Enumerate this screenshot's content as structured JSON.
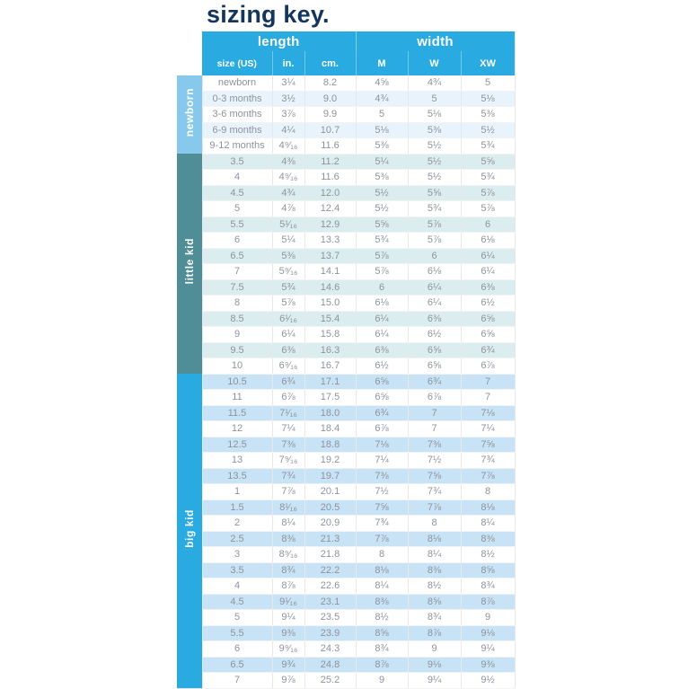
{
  "title": "sizing key.",
  "colors": {
    "title": "#14365c",
    "header": "#29abe2",
    "cell_text": "#8d939c",
    "grid_line": "#e6e9ec"
  },
  "table": {
    "header_groups": [
      {
        "label": "length",
        "colspan": 3
      },
      {
        "label": "width",
        "colspan": 3
      }
    ],
    "columns": [
      "size (US)",
      "in.",
      "cm.",
      "M",
      "W",
      "XW"
    ],
    "sections": [
      {
        "label": "newborn",
        "band_color": "#87c9ed",
        "stripe_color": "#e9f3fb",
        "rows": [
          [
            "newborn",
            "3¼",
            "8.2",
            "4⅝",
            "4¾",
            "5"
          ],
          [
            "0-3 months",
            "3½",
            "9.0",
            "4¾",
            "5",
            "5⅛"
          ],
          [
            "3-6 months",
            "3⅞",
            "9.9",
            "5",
            "5⅛",
            "5⅜"
          ],
          [
            "6-9 months",
            "4¼",
            "10.7",
            "5⅛",
            "5⅜",
            "5½"
          ],
          [
            "9-12 months",
            "4⁹⁄₁₆",
            "11.6",
            "5⅜",
            "5½",
            "5¾"
          ]
        ]
      },
      {
        "label": "little kid",
        "band_color": "#4f8d97",
        "stripe_color": "#dcedef",
        "rows": [
          [
            "3.5",
            "4⅜",
            "11.2",
            "5¼",
            "5½",
            "5⅝"
          ],
          [
            "4",
            "4⁹⁄₁₆",
            "11.6",
            "5⅜",
            "5½",
            "5¾"
          ],
          [
            "4.5",
            "4¾",
            "12.0",
            "5½",
            "5⅝",
            "5⅞"
          ],
          [
            "5",
            "4⅞",
            "12.4",
            "5½",
            "5¾",
            "5⅞"
          ],
          [
            "5.5",
            "5¹⁄₁₆",
            "12.9",
            "5⅝",
            "5⅞",
            "6"
          ],
          [
            "6",
            "5¼",
            "13.3",
            "5¾",
            "5⅞",
            "6⅛"
          ],
          [
            "6.5",
            "5⅜",
            "13.7",
            "5⅞",
            "6",
            "6¼"
          ],
          [
            "7",
            "5⁹⁄₁₆",
            "14.1",
            "5⅞",
            "6⅛",
            "6¼"
          ],
          [
            "7.5",
            "5¾",
            "14.6",
            "6",
            "6¼",
            "6⅜"
          ],
          [
            "8",
            "5⅞",
            "15.0",
            "6⅛",
            "6¼",
            "6½"
          ],
          [
            "8.5",
            "6¹⁄₁₆",
            "15.4",
            "6¼",
            "6⅜",
            "6⅝"
          ],
          [
            "9",
            "6¼",
            "15.8",
            "6¼",
            "6½",
            "6⅝"
          ],
          [
            "9.5",
            "6⅜",
            "16.3",
            "6⅜",
            "6⅝",
            "6¾"
          ],
          [
            "10",
            "6⁹⁄₁₆",
            "16.7",
            "6½",
            "6⅝",
            "6⅞"
          ]
        ]
      },
      {
        "label": "big kid",
        "band_color": "#29abe2",
        "stripe_color": "#c8e3f6",
        "rows": [
          [
            "10.5",
            "6¾",
            "17.1",
            "6⅝",
            "6¾",
            "7"
          ],
          [
            "11",
            "6⅞",
            "17.5",
            "6⅝",
            "6⅞",
            "7"
          ],
          [
            "11.5",
            "7¹⁄₁₆",
            "18.0",
            "6¾",
            "7",
            "7⅛"
          ],
          [
            "12",
            "7¼",
            "18.4",
            "6⅞",
            "7",
            "7¼"
          ],
          [
            "12.5",
            "7⅜",
            "18.8",
            "7⅛",
            "7⅜",
            "7⅝"
          ],
          [
            "13",
            "7⁹⁄₁₆",
            "19.2",
            "7¼",
            "7½",
            "7¾"
          ],
          [
            "13.5",
            "7¾",
            "19.7",
            "7⅜",
            "7⅝",
            "7⅞"
          ],
          [
            "1",
            "7⅞",
            "20.1",
            "7½",
            "7¾",
            "8"
          ],
          [
            "1.5",
            "8¹⁄₁₆",
            "20.5",
            "7⅝",
            "7⅞",
            "8⅛"
          ],
          [
            "2",
            "8¼",
            "20.9",
            "7¾",
            "8",
            "8¼"
          ],
          [
            "2.5",
            "8⅜",
            "21.3",
            "7⅞",
            "8⅛",
            "8⅜"
          ],
          [
            "3",
            "8⁹⁄₁₆",
            "21.8",
            "8",
            "8¼",
            "8½"
          ],
          [
            "3.5",
            "8¾",
            "22.2",
            "8⅛",
            "8⅜",
            "8⅝"
          ],
          [
            "4",
            "8⅞",
            "22.6",
            "8¼",
            "8½",
            "8¾"
          ],
          [
            "4.5",
            "9¹⁄₁₆",
            "23.1",
            "8⅜",
            "8⅝",
            "8⅞"
          ],
          [
            "5",
            "9¼",
            "23.5",
            "8½",
            "8¾",
            "9"
          ],
          [
            "5.5",
            "9⅜",
            "23.9",
            "8⅝",
            "8⅞",
            "9⅛"
          ],
          [
            "6",
            "9⁹⁄₁₆",
            "24.3",
            "8¾",
            "9",
            "9¼"
          ],
          [
            "6.5",
            "9¾",
            "24.8",
            "8⅞",
            "9⅛",
            "9⅜"
          ],
          [
            "7",
            "9⅞",
            "25.2",
            "9",
            "9¼",
            "9½"
          ]
        ]
      }
    ]
  }
}
